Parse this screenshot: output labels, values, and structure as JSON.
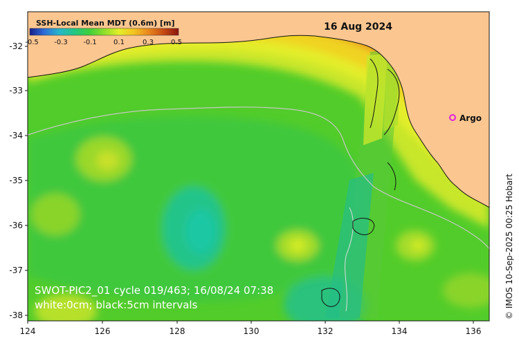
{
  "map": {
    "date": "16 Aug 2024",
    "credit": "© IMOS 10-Sep-2025 00:25 Hobart",
    "argo_label": "Argo",
    "info_line1": "SWOT-PIC2_01 cycle 019/463; 16/08/24 07:38",
    "info_line2": "white:0cm; black:5cm intervals",
    "colorbar": {
      "title": "SSH-Local Mean MDT (0.6m) [m]",
      "ticks": [
        "-0.5",
        "-0.3",
        "-0.1",
        "0.1",
        "0.3",
        "0.5"
      ],
      "colors": [
        "#1a1f8c",
        "#2e6fd8",
        "#26b7c9",
        "#22c784",
        "#3fcf3a",
        "#8fde2a",
        "#e3ee29",
        "#f3c321",
        "#e9861e",
        "#c54a12",
        "#8a1410"
      ]
    },
    "x_ticks": [
      "124",
      "126",
      "128",
      "130",
      "132",
      "134",
      "136"
    ],
    "y_ticks": [
      "-32",
      "-33",
      "-34",
      "-35",
      "-36",
      "-37",
      "-38"
    ],
    "colors": {
      "land": "#fcc690",
      "coast": "#111111",
      "argo": "#e020e0"
    }
  }
}
